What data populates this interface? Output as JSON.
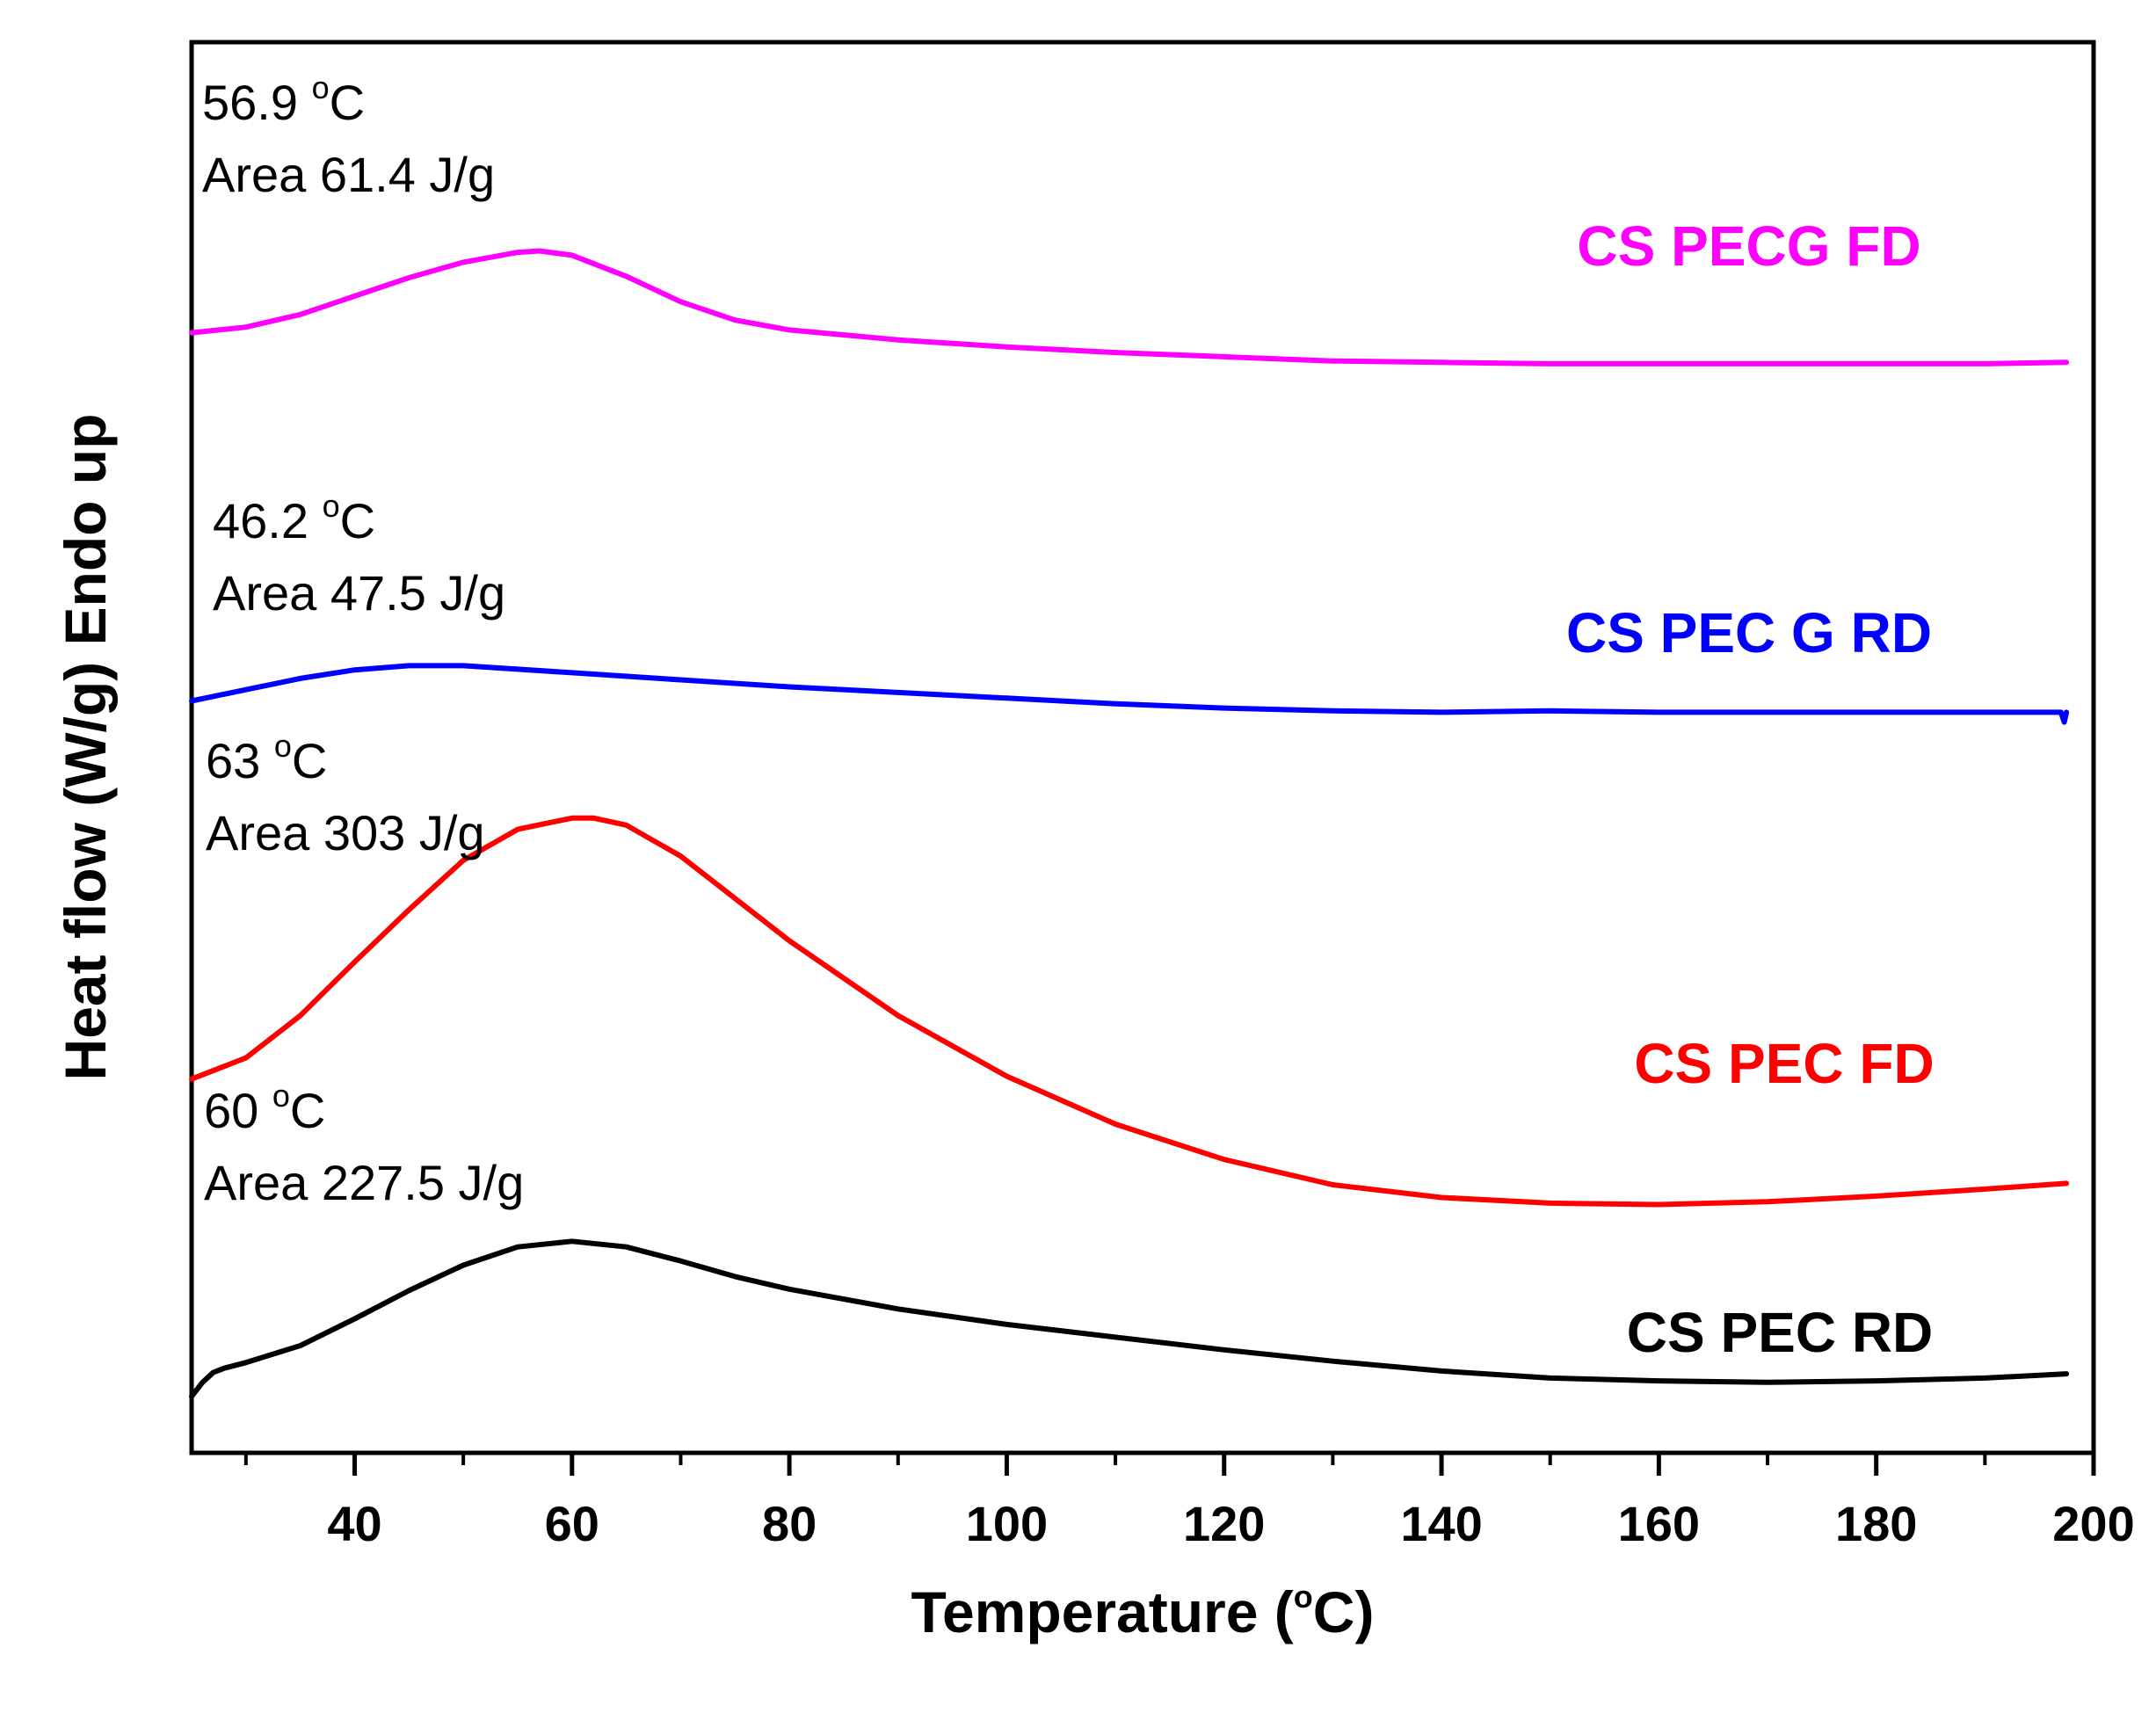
{
  "chart_data": {
    "type": "line",
    "xlabel": "Temperature (°C)",
    "xlabel_parts": [
      "Temperature (",
      "o",
      "C)"
    ],
    "ylabel": "Heat flow (W/g) Endo up",
    "xlim": [
      25,
      200
    ],
    "ylim": [
      0,
      100
    ],
    "x_ticks": [
      40,
      60,
      80,
      100,
      120,
      140,
      160,
      180,
      200
    ],
    "y_ticks_shown": false,
    "grid": false,
    "legend": "none; labels placed next to curves",
    "series": [
      {
        "name": "CS PECG FD",
        "color": "#ff00ff",
        "label": "CS PECG FD",
        "x": [
          25,
          30,
          35,
          40,
          45,
          50,
          55,
          57,
          60,
          65,
          70,
          75,
          80,
          90,
          100,
          110,
          120,
          130,
          140,
          150,
          160,
          170,
          180,
          190,
          197.5
        ],
        "y": [
          79.4,
          79.8,
          80.7,
          82.0,
          83.3,
          84.4,
          85.1,
          85.2,
          84.9,
          83.4,
          81.6,
          80.3,
          79.6,
          78.9,
          78.4,
          78.0,
          77.7,
          77.4,
          77.3,
          77.2,
          77.2,
          77.2,
          77.2,
          77.2,
          77.3
        ],
        "annotation": {
          "peak": "56.9 °C",
          "peak_parts": [
            "56.9 ",
            "o",
            "C"
          ],
          "area": "Area 61.4 J/g"
        }
      },
      {
        "name": "CS PEC G RD",
        "color": "#0000ff",
        "label": "CS PEC G RD",
        "x": [
          25,
          30,
          35,
          40,
          45,
          50,
          60,
          70,
          80,
          90,
          100,
          110,
          120,
          130,
          140,
          150,
          160,
          170,
          180,
          190,
          197,
          197.3,
          197.5
        ],
        "y": [
          53.3,
          54.1,
          54.9,
          55.5,
          55.8,
          55.8,
          55.3,
          54.8,
          54.3,
          53.9,
          53.5,
          53.1,
          52.8,
          52.6,
          52.5,
          52.6,
          52.5,
          52.5,
          52.5,
          52.5,
          52.5,
          51.8,
          52.5
        ],
        "annotation": {
          "peak": "46.2 °C",
          "peak_parts": [
            "46.2 ",
            "o",
            "C"
          ],
          "area": "Area 47.5 J/g"
        }
      },
      {
        "name": "CS PEC FD",
        "color": "#ff0000",
        "label": "CS PEC FD",
        "x": [
          25,
          30,
          35,
          40,
          45,
          50,
          55,
          60,
          62,
          65,
          70,
          75,
          80,
          90,
          100,
          110,
          120,
          130,
          140,
          150,
          160,
          170,
          180,
          190,
          197.5
        ],
        "y": [
          26.5,
          28.0,
          31.0,
          34.8,
          38.5,
          42.0,
          44.2,
          45.0,
          45.0,
          44.5,
          42.3,
          39.3,
          36.3,
          31.0,
          26.7,
          23.3,
          20.8,
          19.0,
          18.1,
          17.7,
          17.6,
          17.8,
          18.2,
          18.7,
          19.1
        ],
        "annotation": {
          "peak": "63 °C",
          "peak_parts": [
            "63 ",
            "o",
            "C"
          ],
          "area": "Area 303 J/g"
        }
      },
      {
        "name": "CS PEC RD",
        "color": "#000000",
        "label": "CS PEC RD",
        "x": [
          25,
          26,
          27,
          28,
          30,
          35,
          40,
          45,
          50,
          55,
          60,
          65,
          70,
          75,
          80,
          90,
          100,
          110,
          120,
          130,
          140,
          150,
          160,
          170,
          180,
          190,
          197.5
        ],
        "y": [
          4.0,
          5.0,
          5.7,
          6.0,
          6.4,
          7.6,
          9.5,
          11.5,
          13.3,
          14.6,
          15.0,
          14.6,
          13.6,
          12.5,
          11.6,
          10.2,
          9.1,
          8.2,
          7.3,
          6.5,
          5.8,
          5.3,
          5.1,
          5.0,
          5.1,
          5.3,
          5.6
        ],
        "annotation": {
          "peak": "60 °C",
          "peak_parts": [
            "60 ",
            "o",
            "C"
          ],
          "area": "Area 227.5 J/g"
        }
      }
    ]
  }
}
